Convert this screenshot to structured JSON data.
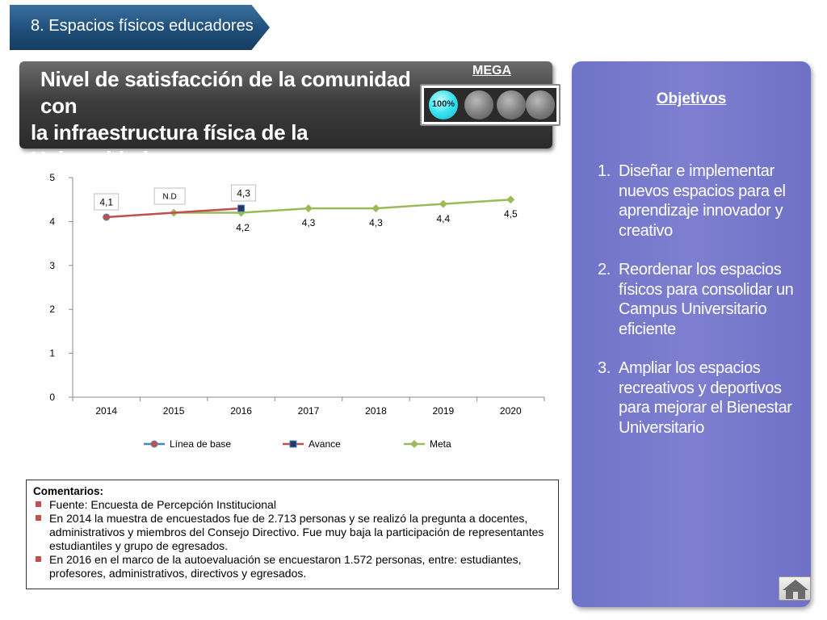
{
  "section": {
    "label": "8. Espacios físicos educadores"
  },
  "header": {
    "title_line1": "Nivel de satisfacción de la comunidad con",
    "title_line2": "la infraestructura física de la Universidad",
    "mega_label": "MEGA",
    "mega_percent": "100%",
    "light_on_color": "#38e4f0"
  },
  "chart_data": {
    "type": "line",
    "x": [
      "2014",
      "2015",
      "2016",
      "2017",
      "2018",
      "2019",
      "2020"
    ],
    "ylim": [
      0,
      5
    ],
    "yticks": [
      "0",
      "1",
      "2",
      "3",
      "4",
      "5"
    ],
    "grid": false,
    "legend_position": "bottom",
    "series": [
      {
        "name": "Línea de base",
        "color": "#4f81bd",
        "marker_color": "#c0504d",
        "marker": "circle",
        "values": [
          4.1,
          null,
          null,
          null,
          null,
          null,
          null
        ]
      },
      {
        "name": "Avance",
        "color": "#c0504d",
        "marker_color": "#1f3864",
        "marker": "square",
        "values": [
          4.1,
          null,
          4.3,
          null,
          null,
          null,
          null
        ]
      },
      {
        "name": "Meta",
        "color": "#9bbb59",
        "marker_color": "#9bbb59",
        "marker": "diamond",
        "values": [
          null,
          4.2,
          4.2,
          4.3,
          4.3,
          4.4,
          4.5
        ]
      }
    ],
    "labels": {
      "base_2014": "4,1",
      "nd_2015": "N.D",
      "avance_2016": "4,3",
      "meta_2016": "4,2",
      "meta_2017": "4,3",
      "meta_2018": "4,3",
      "meta_2019": "4,4",
      "meta_2020": "4,5"
    }
  },
  "comments": {
    "title": "Comentarios:",
    "items": [
      "Fuente: Encuesta de Percepción Institucional",
      "En 2014 la muestra de encuestados fue de 2.713 personas y se realizó la pregunta a docentes, administrativos y miembros del Consejo Directivo. Fue muy baja la participación de representantes estudiantiles y grupo de egresados.",
      "En 2016 en el marco de la autoevaluación se encuestaron 1.572 personas, entre: estudiantes, profesores, administrativos, directivos y egresados."
    ]
  },
  "objectives": {
    "title": "Objetivos",
    "items": [
      {
        "num": "1.",
        "text": "Diseñar e implementar nuevos espacios para el aprendizaje innovador y creativo"
      },
      {
        "num": "2.",
        "text": "Reordenar los espacios físicos para consolidar un Campus Universitario eficiente"
      },
      {
        "num": "3.",
        "text": "Ampliar los espacios recreativos y deportivos para mejorar el Bienestar Universitario"
      }
    ]
  },
  "nav": {
    "home_icon": "home-icon"
  }
}
